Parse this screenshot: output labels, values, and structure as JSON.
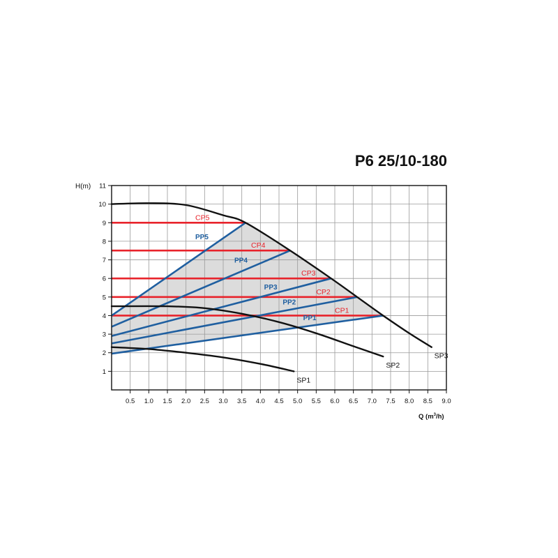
{
  "chart_data": {
    "type": "line",
    "title": "P6 25/10-180",
    "xlabel": "Q (m",
    "xlabel_sup": "3",
    "xlabel_suffix": "/h)",
    "ylabel": "H(m)",
    "xlim": [
      0,
      9
    ],
    "ylim": [
      0,
      11
    ],
    "x_ticks": [
      "0.5",
      "1.0",
      "1.5",
      "2.0",
      "2.5",
      "3.0",
      "3.5",
      "4.0",
      "4.5",
      "5.0",
      "5.5",
      "6.0",
      "6.5",
      "7.0",
      "7.5",
      "8.0",
      "8.5",
      "9.0"
    ],
    "x_tick_values": [
      0.5,
      1,
      1.5,
      2,
      2.5,
      3,
      3.5,
      4,
      4.5,
      5,
      5.5,
      6,
      6.5,
      7,
      7.5,
      8,
      8.5,
      9
    ],
    "y_ticks": [
      "1",
      "2",
      "3",
      "4",
      "5",
      "6",
      "7",
      "8",
      "9",
      "10",
      "11"
    ],
    "y_tick_values": [
      1,
      2,
      3,
      4,
      5,
      6,
      7,
      8,
      9,
      10,
      11
    ],
    "grid": true,
    "colors": {
      "sp": "#111111",
      "cp": "#e8232b",
      "pp": "#1f5fa0",
      "fill": "#dcdcdc",
      "cp_label": "#e8232b",
      "pp_label": "#1f5fa0"
    },
    "sp_series": [
      {
        "name": "SP1",
        "points": [
          [
            0,
            2.3
          ],
          [
            1,
            2.2
          ],
          [
            2,
            2.0
          ],
          [
            3,
            1.75
          ],
          [
            4,
            1.4
          ],
          [
            4.9,
            1.0
          ]
        ]
      },
      {
        "name": "SP2",
        "points": [
          [
            0,
            4.5
          ],
          [
            1.5,
            4.5
          ],
          [
            2.5,
            4.4
          ],
          [
            3.5,
            4.1
          ],
          [
            4.5,
            3.65
          ],
          [
            5.5,
            3.05
          ],
          [
            6.5,
            2.35
          ],
          [
            7.3,
            1.8
          ]
        ]
      },
      {
        "name": "SP3",
        "points": [
          [
            0,
            10
          ],
          [
            1,
            10.05
          ],
          [
            2,
            9.95
          ],
          [
            3,
            9.4
          ],
          [
            3.6,
            9.0
          ],
          [
            4.8,
            7.5
          ],
          [
            5.9,
            6.0
          ],
          [
            6.6,
            5.0
          ],
          [
            7.3,
            4.0
          ],
          [
            8,
            3.05
          ],
          [
            8.6,
            2.3
          ]
        ]
      }
    ],
    "cp_series": [
      {
        "name": "CP5",
        "y": 9,
        "x_end": 3.6,
        "label_x": 2.25
      },
      {
        "name": "CP4",
        "y": 7.5,
        "x_end": 4.8,
        "label_x": 3.75
      },
      {
        "name": "CP3",
        "y": 6,
        "x_end": 5.9,
        "label_x": 5.1
      },
      {
        "name": "CP2",
        "y": 5,
        "x_end": 6.6,
        "label_x": 5.5
      },
      {
        "name": "CP1",
        "y": 4,
        "x_end": 7.3,
        "label_x": 6.0
      }
    ],
    "pp_series": [
      {
        "name": "PP5",
        "points": [
          [
            0,
            4.0
          ],
          [
            3.6,
            9.0
          ]
        ],
        "label_x": 2.25,
        "label_y": 8.1
      },
      {
        "name": "PP4",
        "points": [
          [
            0,
            3.4
          ],
          [
            4.8,
            7.5
          ]
        ],
        "label_x": 3.3,
        "label_y": 6.85
      },
      {
        "name": "PP3",
        "points": [
          [
            0,
            2.9
          ],
          [
            5.9,
            6.0
          ]
        ],
        "label_x": 4.1,
        "label_y": 5.4
      },
      {
        "name": "PP2",
        "points": [
          [
            0,
            2.5
          ],
          [
            6.6,
            5.0
          ]
        ],
        "label_x": 4.6,
        "label_y": 4.6
      },
      {
        "name": "PP1",
        "points": [
          [
            0,
            1.95
          ],
          [
            7.3,
            4.0
          ]
        ],
        "label_x": 5.15,
        "label_y": 3.75
      }
    ]
  }
}
